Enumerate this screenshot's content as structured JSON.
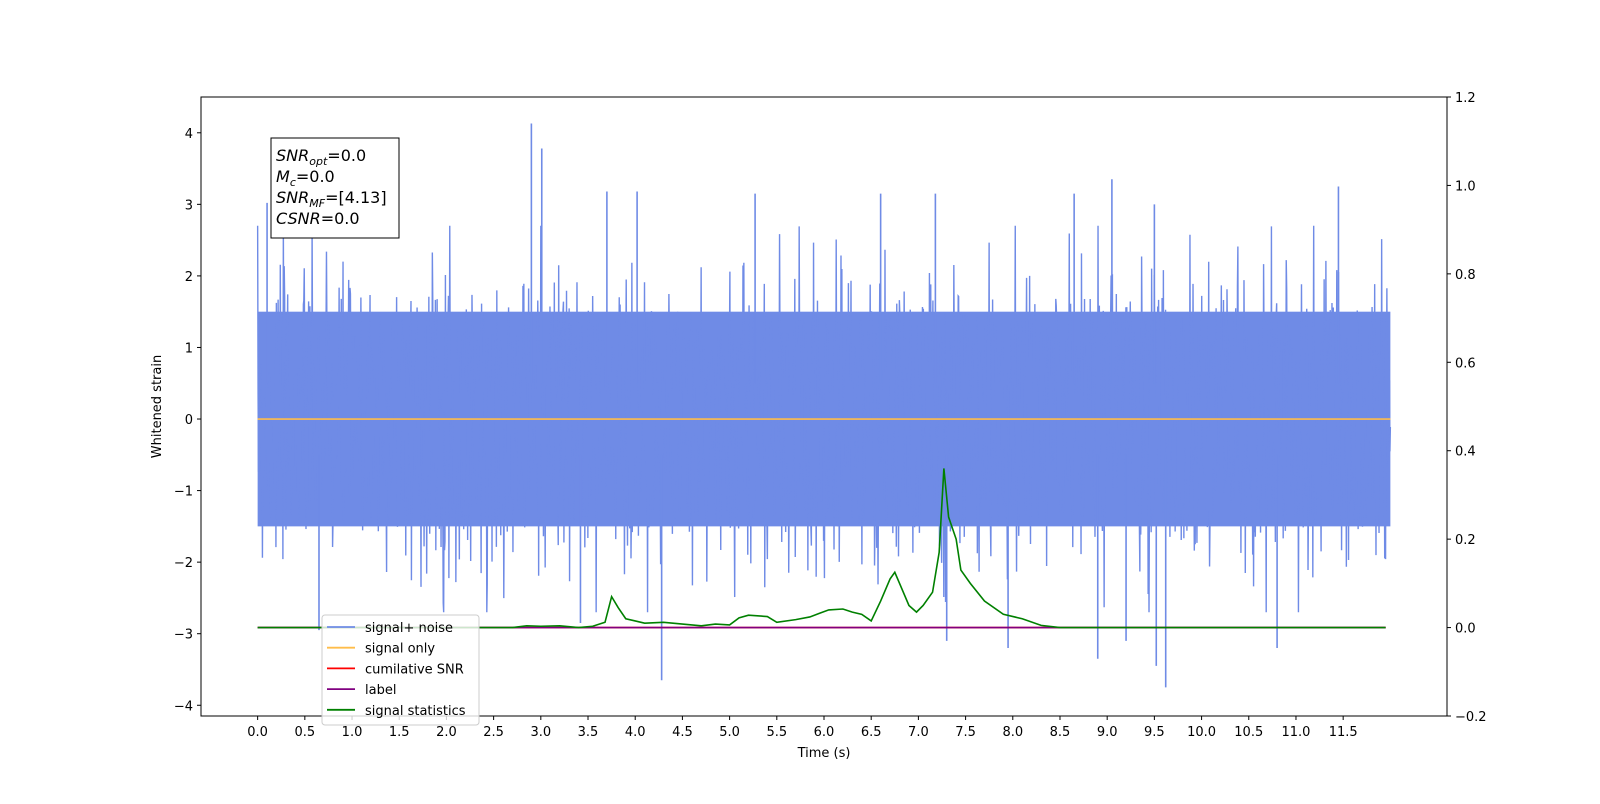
{
  "chart_data": {
    "type": "line",
    "xlabel": "Time (s)",
    "ylabel": "Whitened strain",
    "xlim": [
      -0.6,
      12.6
    ],
    "ylim": [
      -4.15,
      4.5
    ],
    "y2lim": [
      -0.2,
      1.2
    ],
    "grid": false,
    "xticks": [
      "0.0",
      "0.5",
      "1.0",
      "1.5",
      "2.0",
      "2.5",
      "3.0",
      "3.5",
      "4.0",
      "4.5",
      "5.0",
      "5.5",
      "6.0",
      "6.5",
      "7.0",
      "7.5",
      "8.0",
      "8.5",
      "9.0",
      "9.5",
      "10.0",
      "10.5",
      "11.0",
      "11.5"
    ],
    "yticks_left": [
      {
        "v": 4,
        "label": "4"
      },
      {
        "v": 3,
        "label": "3"
      },
      {
        "v": 2,
        "label": "2"
      },
      {
        "v": 1,
        "label": "1"
      },
      {
        "v": 0,
        "label": "0"
      },
      {
        "v": -1,
        "label": "−1"
      },
      {
        "v": -2,
        "label": "−2"
      },
      {
        "v": -3,
        "label": "−3"
      },
      {
        "v": -4,
        "label": "−4"
      }
    ],
    "yticks_right": [
      {
        "v": 1.2,
        "label": "1.2"
      },
      {
        "v": 1.0,
        "label": "1.0"
      },
      {
        "v": 0.8,
        "label": "0.8"
      },
      {
        "v": 0.6,
        "label": "0.6"
      },
      {
        "v": 0.4,
        "label": "0.4"
      },
      {
        "v": 0.2,
        "label": "0.2"
      },
      {
        "v": 0.0,
        "label": "0.0"
      },
      {
        "v": -0.2,
        "label": "−0.2"
      }
    ],
    "noise": {
      "x_range": [
        0.0,
        12.0
      ],
      "core_range": [
        -1.5,
        1.5
      ],
      "spikes": [
        {
          "x": 2.9,
          "y": 4.13
        },
        {
          "x": 3.01,
          "y": 3.78
        },
        {
          "x": 9.05,
          "y": 3.35
        },
        {
          "x": 11.45,
          "y": 3.25
        },
        {
          "x": 3.7,
          "y": 3.18
        },
        {
          "x": 4.02,
          "y": 3.18
        },
        {
          "x": 5.27,
          "y": 3.15
        },
        {
          "x": 6.6,
          "y": 3.15
        },
        {
          "x": 7.18,
          "y": 3.15
        },
        {
          "x": 8.65,
          "y": 3.15
        },
        {
          "x": 9.5,
          "y": 3.0
        },
        {
          "x": 0.1,
          "y": 3.02
        },
        {
          "x": 4.28,
          "y": -3.65
        },
        {
          "x": 9.62,
          "y": -3.75
        },
        {
          "x": 9.52,
          "y": -3.45
        },
        {
          "x": 8.9,
          "y": -3.35
        },
        {
          "x": 7.3,
          "y": -3.1
        },
        {
          "x": 9.2,
          "y": -3.1
        },
        {
          "x": 7.95,
          "y": -3.2
        },
        {
          "x": 10.8,
          "y": -3.2
        },
        {
          "x": 3.42,
          "y": -2.85
        },
        {
          "x": 0.65,
          "y": -2.95
        }
      ]
    },
    "series": [
      {
        "name": "signal+ noise",
        "axis": "left",
        "color": "#6f8be6",
        "style": "noise"
      },
      {
        "name": "signal only",
        "axis": "left",
        "color": "#ffbd4a",
        "x": [
          0.0,
          12.0
        ],
        "y": [
          0.0,
          0.0
        ]
      },
      {
        "name": "cumilative SNR",
        "axis": "right",
        "color": "#ff0000",
        "x": [
          0.0,
          11.95
        ],
        "y": [
          0.0,
          0.0
        ]
      },
      {
        "name": "label",
        "axis": "right",
        "color": "#800080",
        "x": [
          0.0,
          11.95
        ],
        "y": [
          0.0,
          0.0
        ]
      },
      {
        "name": "signal statistics",
        "axis": "right",
        "color": "#008000",
        "x": [
          0.0,
          2.7,
          2.85,
          3.0,
          3.2,
          3.4,
          3.55,
          3.68,
          3.75,
          3.82,
          3.9,
          4.0,
          4.1,
          4.3,
          4.5,
          4.7,
          4.85,
          5.0,
          5.1,
          5.2,
          5.4,
          5.5,
          5.7,
          5.85,
          5.95,
          6.05,
          6.2,
          6.3,
          6.4,
          6.5,
          6.6,
          6.7,
          6.75,
          6.8,
          6.9,
          6.98,
          7.05,
          7.15,
          7.22,
          7.27,
          7.32,
          7.4,
          7.45,
          7.55,
          7.7,
          7.9,
          8.1,
          8.3,
          8.5,
          11.95
        ],
        "y": [
          0.0,
          0.0,
          0.004,
          0.003,
          0.004,
          0.0,
          0.003,
          0.012,
          0.07,
          0.045,
          0.02,
          0.015,
          0.01,
          0.012,
          0.008,
          0.004,
          0.008,
          0.006,
          0.022,
          0.028,
          0.025,
          0.012,
          0.018,
          0.024,
          0.032,
          0.04,
          0.042,
          0.035,
          0.03,
          0.015,
          0.06,
          0.11,
          0.125,
          0.1,
          0.05,
          0.035,
          0.05,
          0.08,
          0.17,
          0.36,
          0.25,
          0.2,
          0.13,
          0.1,
          0.06,
          0.03,
          0.02,
          0.005,
          0.0,
          0.0
        ]
      }
    ],
    "legend": {
      "placement": "lower-left",
      "entries": [
        {
          "label": "signal+ noise",
          "color": "#6f8be6"
        },
        {
          "label": "signal only",
          "color": "#ffbd4a"
        },
        {
          "label": "cumilative SNR",
          "color": "#ff0000"
        },
        {
          "label": "label",
          "color": "#800080"
        },
        {
          "label": "signal statistics",
          "color": "#008000"
        }
      ]
    },
    "annotations": [
      {
        "main": "SNR",
        "sub": "opt",
        "rest": "=0.0"
      },
      {
        "main": "M",
        "sub": "c",
        "rest": "=0.0"
      },
      {
        "main": "SNR",
        "sub": "MF",
        "rest": "=[4.13]"
      },
      {
        "main": "CSNR",
        "sub": "",
        "rest": "=0.0"
      }
    ]
  }
}
